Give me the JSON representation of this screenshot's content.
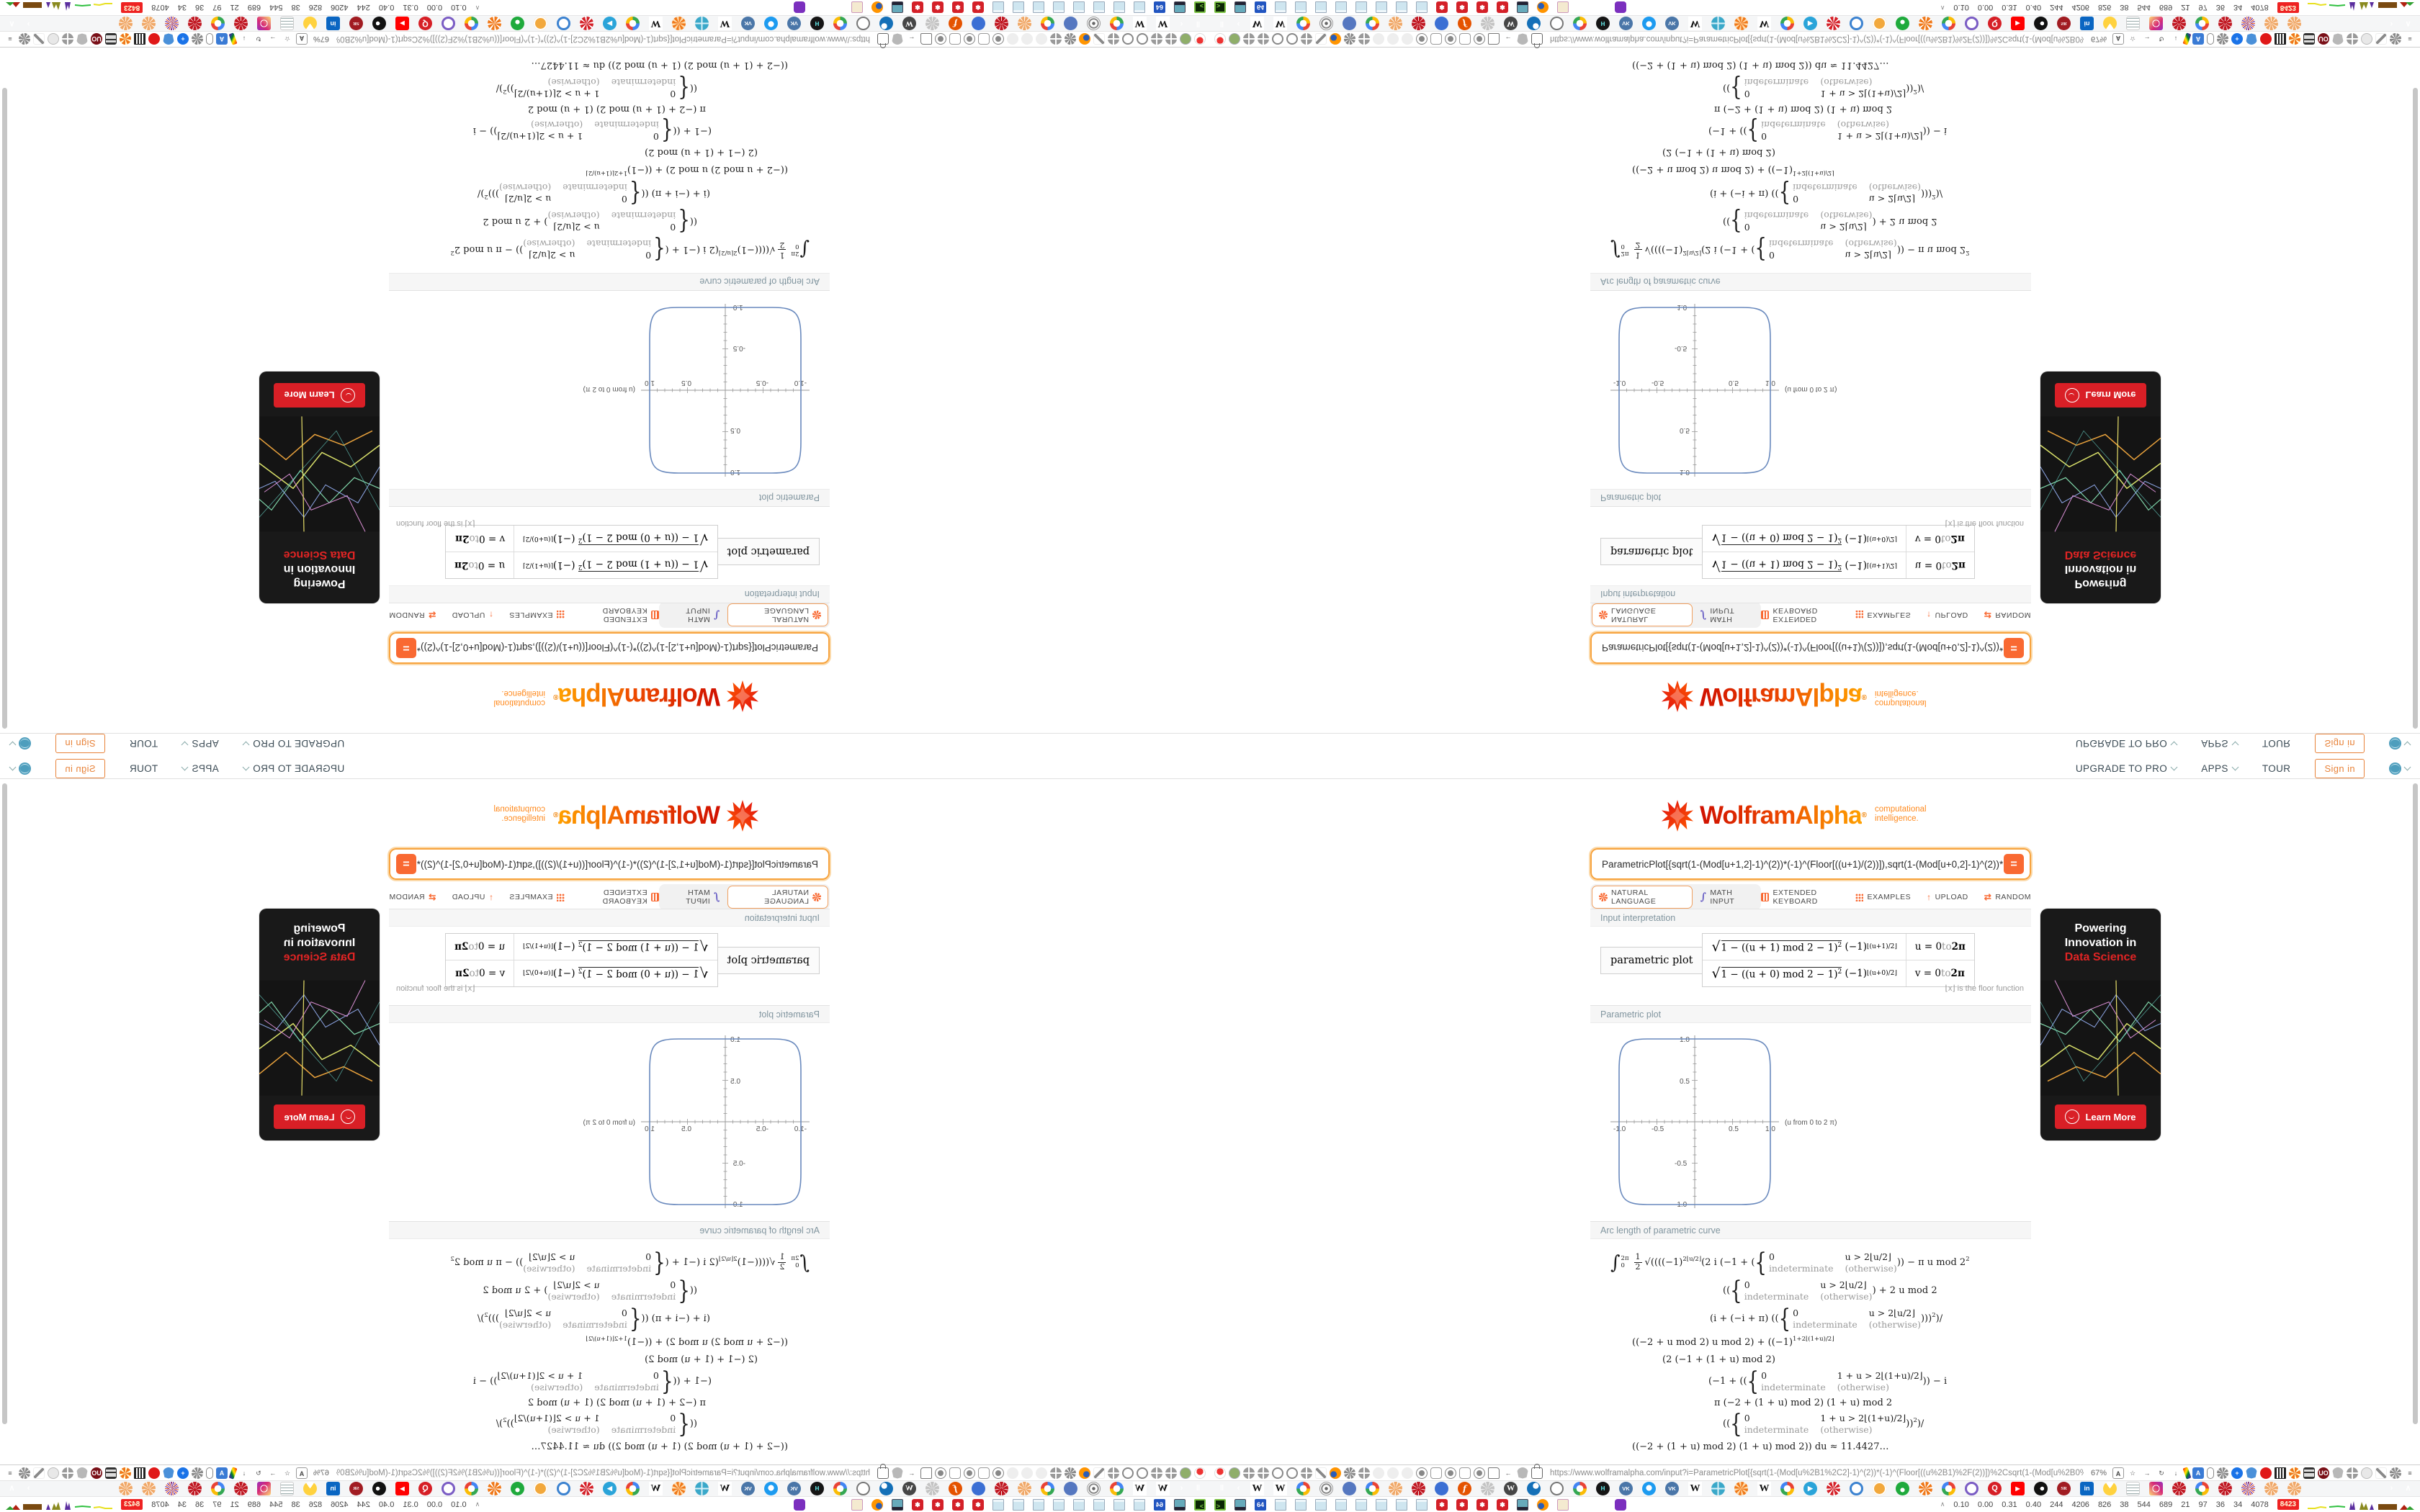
{
  "header": {
    "links": [
      "UPGRADE TO PRO",
      "APPS",
      "TOUR"
    ],
    "signin_label": "Sign in"
  },
  "logo": {
    "wolfram": "Wolfram",
    "alpha": "Alpha",
    "reg": "®",
    "tag1": "computational",
    "tag2": "intelligence."
  },
  "search": {
    "query": "ParametricPlot[{sqrt(1-(Mod[u+1,2]-1)^(2))*(-1)^(Floor[((u+1)/(2))]),sqrt(1-(Mod[u+0,2]-1)^(2))*(-1)^(Floor",
    "equals_label": "="
  },
  "actions": {
    "natural": "NATURAL LANGUAGE",
    "math": "MATH INPUT",
    "keyboard": "EXTENDED KEYBOARD",
    "examples": "EXAMPLES",
    "upload": "UPLOAD",
    "random": "RANDOM",
    "math_icon": "∫",
    "upload_icon": "↑",
    "random_icon": "⇄"
  },
  "pods": {
    "interp": {
      "label": "Input interpretation",
      "pl_cell": "parametric plot",
      "rows": [
        {
          "body": "1 − ((u + 1) mod 2 − 1)",
          "pow": "2",
          "mult": "(−1)",
          "msup": "⌊(u+1)/2⌋",
          "domain_var": "u = 0",
          "domain_to": " to ",
          "domain_end": "2π"
        },
        {
          "body": "1 − ((u + 0) mod 2 − 1)",
          "pow": "2",
          "mult": "(−1)",
          "msup": "⌊(u+0)/2⌋",
          "domain_var": "v = 0",
          "domain_to": " to ",
          "domain_end": "2π"
        }
      ],
      "note": "⌊x⌋ is the floor function"
    },
    "plot": {
      "label": "Parametric plot"
    },
    "arc": {
      "label": "Arc length of parametric curve",
      "pw_val": "0",
      "pw_row2": [
        "indeterminate",
        "(otherwise)"
      ],
      "lines": [
        {
          "ind": 14,
          "mt": 6,
          "toks": [
            {
              "t": "int",
              "sup": "2π",
              "sub": "0"
            },
            {
              "t": "frac",
              "a": "1",
              "b": "2"
            },
            {
              "t": "txt",
              "v": "√((("
            },
            {
              "t": "txt",
              "v": "(−1)"
            },
            {
              "t": "sup",
              "v": "2⌊u/2⌋"
            },
            {
              "t": "txt",
              "v": " (2 i (−1 + ("
            },
            {
              "t": "pw",
              "c": "u > 2⌊u/2⌋"
            },
            {
              "t": "txt",
              "v": ")) − π u mod 2"
            },
            {
              "t": "sup",
              "v": "2"
            }
          ]
        },
        {
          "ind": 170,
          "mt": 8,
          "toks": [
            {
              "t": "txt",
              "v": "(("
            },
            {
              "t": "pw",
              "c": "u > 2⌊u/2⌋"
            },
            {
              "t": "txt",
              "v": ") + 2 u mod 2"
            }
          ]
        },
        {
          "ind": 152,
          "mt": 8,
          "toks": [
            {
              "t": "txt",
              "v": "(i + (−i + π) (("
            },
            {
              "t": "pw",
              "c": "u > 2⌊u/2⌋"
            },
            {
              "t": "txt",
              "v": ")))"
            },
            {
              "t": "sup",
              "v": "2"
            },
            {
              "t": "txt",
              "v": ")/"
            }
          ]
        },
        {
          "ind": 44,
          "mt": 10,
          "toks": [
            {
              "t": "txt",
              "v": "((−2 + u mod 2) u mod 2) + ((−1)"
            },
            {
              "t": "sup",
              "v": "1+2⌊(1+u)/2⌋"
            }
          ]
        },
        {
          "ind": 86,
          "mt": 9,
          "toks": [
            {
              "t": "txt",
              "v": "(2 (−1 + (1 + u) mod 2)"
            }
          ]
        },
        {
          "ind": 150,
          "mt": 7,
          "toks": [
            {
              "t": "txt",
              "v": "(−1 + (("
            },
            {
              "t": "pw",
              "c": "1 + u > 2⌊(1+u)/2⌋"
            },
            {
              "t": "txt",
              "v": ")) − i"
            }
          ]
        },
        {
          "ind": 158,
          "mt": 7,
          "toks": [
            {
              "t": "txt",
              "v": "π (−2 + (1 + u) mod 2) (1 + u) mod 2"
            }
          ]
        },
        {
          "ind": 170,
          "mt": 6,
          "toks": [
            {
              "t": "txt",
              "v": "(("
            },
            {
              "t": "pw",
              "c": "1 + u > 2⌊(1+u)/2⌋"
            },
            {
              "t": "txt",
              "v": "))"
            },
            {
              "t": "sup",
              "v": "2"
            },
            {
              "t": "txt",
              "v": ")/"
            }
          ]
        },
        {
          "ind": 44,
          "mt": 9,
          "toks": [
            {
              "t": "txt",
              "v": "((−2 + (1 + u) mod 2) (1 + u) mod 2)) du ≈ 11.4427…"
            }
          ]
        }
      ],
      "result": "du ≈ 11.4427…"
    }
  },
  "ad": {
    "line1": "Powering",
    "line2": "Innovation in",
    "accent": "Data Science",
    "cta": "Learn More"
  },
  "chrome": {
    "url": "https://www.wolframalpha.com/input?i=ParametricPlot[{sqrt(1-(Mod[u%2B1%2C2]-1)^(2))*(-1)^(Floor[((u%2B1)%2F(2))])%2Csqrt(1-(Mod[u%2B0%2C2]-1)^(2))*(-1)^(Floor[((u%2B0",
    "zoom_level": "67%",
    "tab_left": [
      "pause",
      "chevL"
    ],
    "tab_right": [
      "chevR",
      "up"
    ],
    "tab_favicons": [
      "w",
      "w",
      "g",
      "target",
      "gearb",
      "g",
      "orangem",
      "redm",
      "people",
      "fx",
      "graym",
      "wp",
      "drop",
      "gauge",
      "g",
      "hexb",
      "vk",
      "chat",
      "vk",
      "w",
      "globeb",
      "sun",
      "w",
      "g",
      "play",
      "redgear2",
      "bluering",
      "coin",
      "greenc",
      "ogear",
      "g",
      "purplering",
      "qred",
      "yt",
      "blackc",
      "srred",
      "linkedin",
      "pacman",
      "list",
      "insta",
      "redm",
      "g",
      "redm",
      "burst",
      "orangem",
      "orangem"
    ],
    "toolbar_left": [
      "pinred",
      "avgreen",
      "globeg",
      "globeg",
      "gaugeg",
      "gaugeg",
      "globeg",
      "wrench",
      "ffx",
      "gearg",
      "globeg",
      "fdot",
      "fdot",
      "fdot",
      "radon",
      "radoff",
      "radon",
      "radoff",
      "radon",
      "folder",
      "back",
      "shieldg",
      "lock"
    ],
    "toolbar_right": [
      "abox",
      "star",
      "fwd",
      "reload",
      "dl",
      "pride",
      "ablue",
      "pillw",
      "gearg",
      "plusb",
      "shieldb",
      "reddot",
      "trash",
      "globeo",
      "barrel",
      "uored",
      "shieldg",
      "globeg",
      "thumb",
      "wrench",
      "gearg",
      "menu"
    ],
    "taskbar_apps": [
      "termg",
      "monitor",
      "floppy",
      "note",
      "note",
      "note",
      "note",
      "note",
      "note",
      "note",
      "note",
      "redgear",
      "redgear",
      "redgear",
      "redgear",
      "monitor2",
      "ffx",
      "scroll",
      "gap",
      "owl"
    ],
    "stats_chevron": "∧",
    "stats": [
      "0.10",
      "0.00",
      "0.31",
      "0.40",
      "244",
      "4206",
      "826",
      "38",
      "544",
      "689",
      "21",
      "97",
      "36",
      "34",
      "4078"
    ],
    "stats_badge": "8423",
    "icon_glyphs": {
      "w": "W",
      "vk": "VK",
      "qred": "Q",
      "yt": "▶",
      "play": "▶",
      "srred": "SR",
      "linkedin": "in",
      "fx": "f",
      "wp": "W",
      "hexb": "H",
      "back": "←",
      "fwd": "→",
      "reload": "↻",
      "dl": "↓",
      "star": "☆",
      "menu": "≡",
      "abox": "A",
      "ablue": "A",
      "pause": "‖",
      "chevL": "‹",
      "chevR": "›",
      "up": "∧",
      "uored": "UO",
      "floppy": "64",
      "termg": "&gt;_",
      "redgear": "✽",
      "plusb": "+"
    }
  },
  "chart_data": {
    "type": "line",
    "title": "Parametric plot",
    "axis_note": "(u from 0 to 2 π)",
    "x_param": "sqrt(1-((u+1) mod 2 - 1)^2)*(-1)^floor((u+1)/2)",
    "y_param": "sqrt(1-((u+0) mod 2 - 1)^2)*(-1)^floor((u+0)/2)",
    "u_range": [
      0,
      "2π"
    ],
    "xlim": [
      -1.35,
      1.65
    ],
    "ylim": [
      -1.2,
      1.2
    ],
    "x_ticks": [
      -1.0,
      -0.5,
      0.5,
      1.0
    ],
    "y_ticks": [
      -1.0,
      -0.5,
      0.5,
      1.0
    ],
    "x_tick_labels": [
      "-1.0",
      "-0.5",
      "0.5",
      "1.0"
    ],
    "y_tick_labels": [
      "1.0",
      "0.5",
      "-0.5",
      "-1.0"
    ],
    "grid": false,
    "legend": false,
    "curve_color": "#6989bd",
    "points": [
      [
        0,
        1
      ],
      [
        0.5,
        1
      ],
      [
        0.87,
        0.95
      ],
      [
        1,
        0.7
      ],
      [
        1,
        0
      ],
      [
        1,
        -0.7
      ],
      [
        0.87,
        -0.95
      ],
      [
        0.5,
        -1
      ],
      [
        0,
        -1
      ],
      [
        -0.5,
        -1
      ],
      [
        -0.87,
        -0.95
      ],
      [
        -1,
        -0.7
      ],
      [
        -1,
        0
      ],
      [
        -1,
        0.7
      ],
      [
        -0.87,
        0.95
      ],
      [
        -0.5,
        1
      ],
      [
        0,
        1
      ]
    ],
    "arc_length_result": 11.4427
  }
}
